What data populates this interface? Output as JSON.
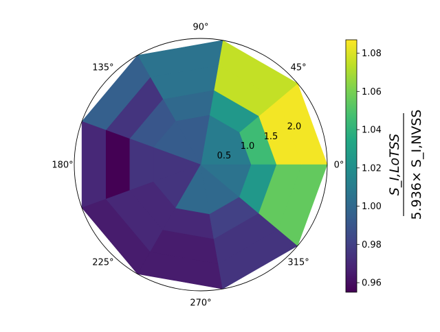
{
  "chart_data": {
    "type": "heatmap",
    "projection": "polar",
    "grid": false,
    "theta_tick_labels": [
      "0°",
      "45°",
      "90°",
      "135°",
      "180°",
      "225°",
      "270°",
      "315°"
    ],
    "r_tick_labels": [
      "0.5",
      "1.0",
      "1.5",
      "2.0"
    ],
    "r_edges": [
      0,
      1,
      1.5,
      2.0,
      2.5
    ],
    "theta_edges_deg": [
      0,
      40,
      80,
      120,
      160,
      200,
      240,
      280,
      320,
      360
    ],
    "values": [
      [
        1.01,
        1.01,
        0.993,
        0.993,
        0.975,
        0.975,
        1.0,
        1.0,
        1.005
      ],
      [
        1.045,
        1.025,
        1.0,
        0.99,
        0.975,
        0.97,
        0.97,
        0.98,
        1.025
      ],
      [
        1.085,
        1.075,
        1.005,
        0.975,
        0.955,
        0.97,
        0.965,
        0.975,
        1.055
      ],
      [
        1.085,
        1.075,
        1.005,
        0.995,
        0.97,
        0.965,
        0.965,
        0.975,
        1.055
      ]
    ],
    "colorbar": {
      "colormap": "viridis",
      "vmin": 0.955,
      "vmax": 1.087,
      "tick_labels": [
        "0.96",
        "0.98",
        "1.00",
        "1.02",
        "1.04",
        "1.06",
        "1.08"
      ],
      "label": "$\\frac{S_{I,LoTSS}}{5.936\\times S_{I,NVSS}}$"
    }
  }
}
